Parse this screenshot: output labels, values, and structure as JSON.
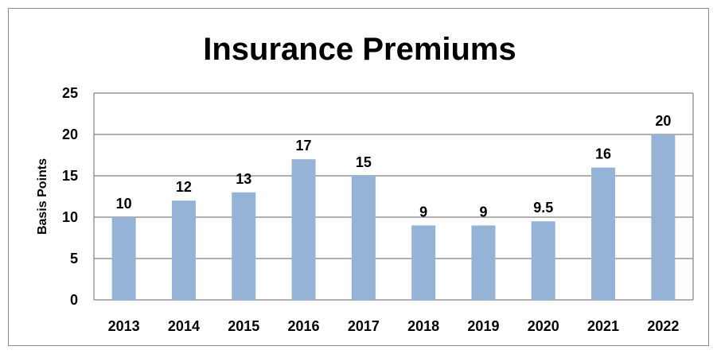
{
  "chart_data": {
    "type": "bar",
    "title": "Insurance Premiums",
    "xlabel": "",
    "ylabel": "Basis Points",
    "categories": [
      "2013",
      "2014",
      "2015",
      "2016",
      "2017",
      "2018",
      "2019",
      "2020",
      "2021",
      "2022"
    ],
    "values": [
      10,
      12,
      13,
      17,
      15,
      9,
      9,
      9.5,
      16,
      20
    ],
    "data_labels": [
      "10",
      "12",
      "13",
      "17",
      "15",
      "9",
      "9",
      "9.5",
      "16",
      "20"
    ],
    "ylim": [
      0,
      25
    ],
    "yticks": [
      0,
      5,
      10,
      15,
      20,
      25
    ],
    "grid": true,
    "legend": "none",
    "colors": {
      "bar": "#95b3d7",
      "grid": "#808080",
      "frame": "#8c8c8c"
    }
  }
}
